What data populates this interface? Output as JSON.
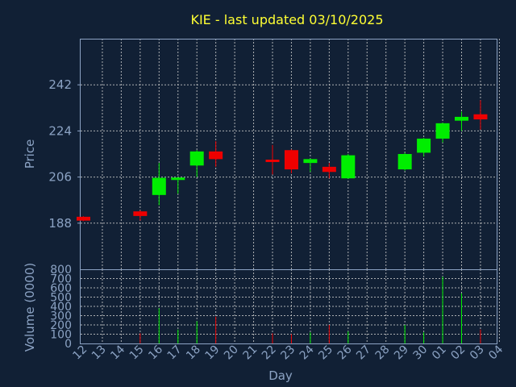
{
  "chart_data": {
    "type": "candlestick",
    "title": "KIE - last updated 03/10/2025",
    "xlabel": "Day",
    "price_panel": {
      "ylabel": "Price",
      "ylim": [
        170,
        260
      ],
      "yticks": [
        188,
        206,
        224,
        242
      ],
      "grid": true
    },
    "volume_panel": {
      "ylabel": "Volume (0000)",
      "ylim": [
        0,
        800
      ],
      "yticks": [
        0,
        100,
        200,
        300,
        400,
        500,
        600,
        700,
        800
      ],
      "grid": true
    },
    "x_ticks": [
      "12",
      "13",
      "14",
      "15",
      "16",
      "17",
      "18",
      "19",
      "20",
      "21",
      "22",
      "23",
      "24",
      "25",
      "26",
      "27",
      "28",
      "29",
      "30",
      "01",
      "02",
      "03",
      "04"
    ],
    "candles": [
      {
        "x": "12",
        "open": 190.5,
        "close": 189.0,
        "high": 190.7,
        "low": 188.8,
        "volume": 0
      },
      {
        "x": "15",
        "open": 192.6,
        "close": 190.8,
        "high": 193.0,
        "low": 189.0,
        "volume": 110
      },
      {
        "x": "16",
        "open": 199.0,
        "close": 205.7,
        "high": 211.5,
        "low": 195.0,
        "volume": 380
      },
      {
        "x": "17",
        "open": 205.5,
        "close": 205.8,
        "high": 206.0,
        "low": 199.5,
        "volume": 150
      },
      {
        "x": "18",
        "open": 210.5,
        "close": 216.0,
        "high": 216.5,
        "low": 206.0,
        "volume": 240
      },
      {
        "x": "19",
        "open": 216.0,
        "close": 213.0,
        "high": 220.0,
        "low": 210.0,
        "volume": 290
      },
      {
        "x": "22",
        "open": 212.8,
        "close": 212.0,
        "high": 218.5,
        "low": 207.0,
        "volume": 110
      },
      {
        "x": "23",
        "open": 216.5,
        "close": 209.0,
        "high": 216.8,
        "low": 207.5,
        "volume": 100
      },
      {
        "x": "24",
        "open": 211.5,
        "close": 213.0,
        "high": 213.2,
        "low": 208.0,
        "volume": 120
      },
      {
        "x": "25",
        "open": 210.0,
        "close": 208.0,
        "high": 211.5,
        "low": 205.5,
        "volume": 200
      },
      {
        "x": "26",
        "open": 205.5,
        "close": 214.5,
        "high": 215.0,
        "low": 205.3,
        "volume": 130
      },
      {
        "x": "29",
        "open": 209.0,
        "close": 215.0,
        "high": 215.5,
        "low": 208.5,
        "volume": 200
      },
      {
        "x": "30",
        "open": 215.5,
        "close": 221.0,
        "high": 221.3,
        "low": 214.0,
        "volume": 120
      },
      {
        "x": "01",
        "open": 221.0,
        "close": 227.0,
        "high": 227.2,
        "low": 219.5,
        "volume": 720
      },
      {
        "x": "02",
        "open": 228.0,
        "close": 229.5,
        "high": 231.5,
        "low": 224.0,
        "volume": 540
      },
      {
        "x": "03",
        "open": 230.5,
        "close": 228.5,
        "high": 236.0,
        "low": 224.5,
        "volume": 150
      }
    ],
    "up_color": "#00ee00",
    "down_color": "#ee0000"
  },
  "colors": {
    "background": "#112035",
    "text": "#8ca3c4",
    "title": "#ffff33",
    "grid": "#c8c8c8"
  }
}
